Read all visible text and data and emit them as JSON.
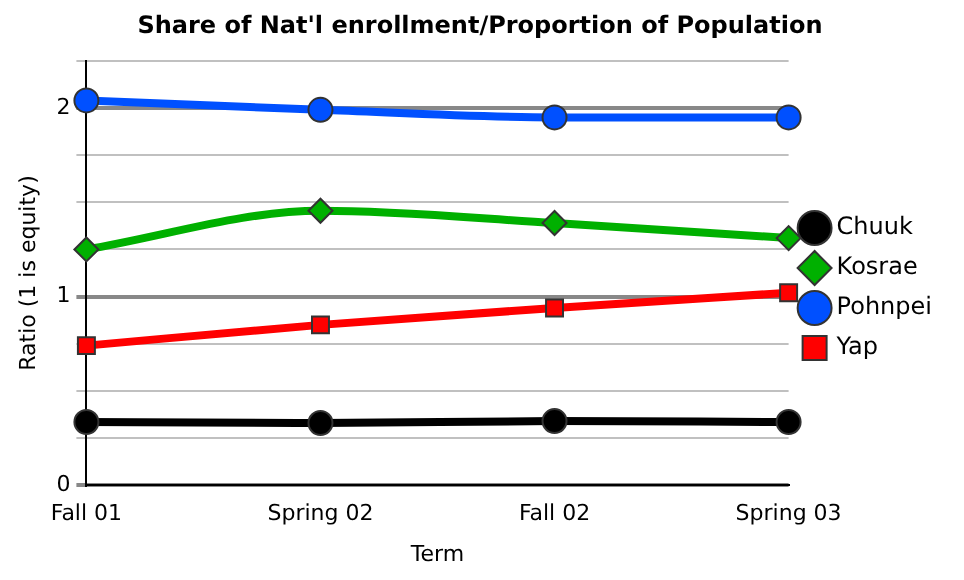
{
  "chart_data": {
    "type": "line",
    "title": "Share of Nat'l enrollment/Proportion of Population",
    "xlabel": "Term",
    "ylabel": "Ratio (1 is equity)",
    "categories": [
      "Fall 01",
      "Spring 02",
      "Fall 02",
      "Spring 03"
    ],
    "series": [
      {
        "name": "Chuuk",
        "color": "#000000",
        "marker": "circle",
        "values": [
          0.335,
          0.33,
          0.34,
          0.335
        ]
      },
      {
        "name": "Kosrae",
        "color": "#00b000",
        "marker": "diamond",
        "values": [
          1.25,
          1.455,
          1.39,
          1.31
        ]
      },
      {
        "name": "Pohnpei",
        "color": "#0050ff",
        "marker": "circle",
        "values": [
          2.04,
          1.99,
          1.95,
          1.95
        ]
      },
      {
        "name": "Yap",
        "color": "#ff0000",
        "marker": "square",
        "values": [
          0.74,
          0.85,
          0.94,
          1.02
        ]
      }
    ],
    "ylim": [
      0,
      2.25
    ],
    "yticks": [
      0,
      {
        "value": 0.25,
        "label": null
      },
      {
        "value": 0.5,
        "label": null
      },
      {
        "value": 0.75,
        "label": null
      },
      1,
      {
        "value": 1.25,
        "label": null
      },
      {
        "value": 1.5,
        "label": null
      },
      {
        "value": 1.75,
        "label": null
      },
      2,
      {
        "value": 2.25,
        "label": null
      }
    ],
    "grid": "y",
    "legend": "right",
    "line_style": "solid"
  }
}
